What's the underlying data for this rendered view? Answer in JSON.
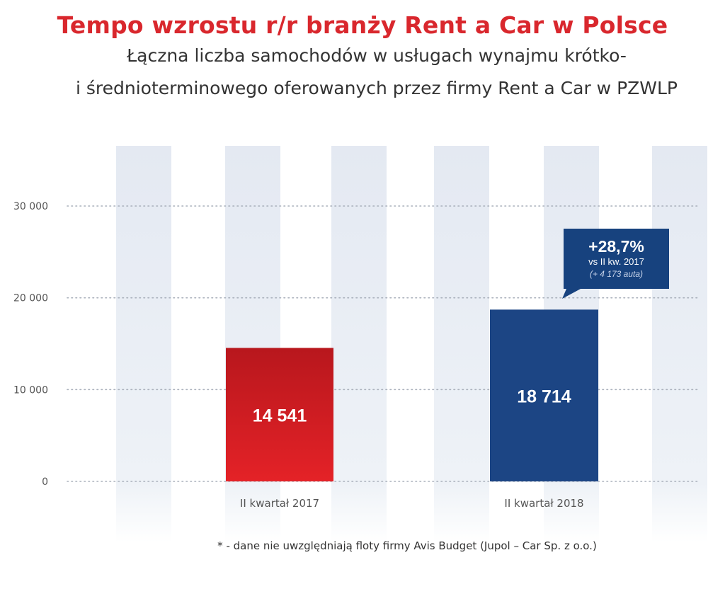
{
  "header": {
    "title": "Tempo wzrostu r/r branży Rent a Car w Polsce",
    "subtitle_line1": "Łączna liczba samochodów w usługach wynajmu krótko-",
    "subtitle_line2": "i średnioterminowego oferowanych przez firmy Rent a Car w PZWLP"
  },
  "chart_data": {
    "type": "bar",
    "categories": [
      "II kwartał 2017",
      "II kwartał 2018"
    ],
    "values": [
      14541,
      18714
    ],
    "value_labels": [
      "14 541",
      "18 714"
    ],
    "ylim": [
      0,
      35000
    ],
    "yticks": [
      0,
      10000,
      20000,
      30000
    ],
    "ytick_labels": [
      "0",
      "10 000",
      "20 000",
      "30 000"
    ],
    "grid": true,
    "colors": {
      "bar_2017_top": "#b8171d",
      "bar_2017_bottom": "#e42227",
      "bar_2018": "#1c4584",
      "callout": "#17427e",
      "stripe": "#e6ebf3"
    },
    "annotation": {
      "headline": "+28,7%",
      "line2": "vs II kw. 2017",
      "line3": "(+ 4 173 auta)"
    }
  },
  "footnote": "* - dane nie uwzględniają floty firmy Avis Budget (Jupol – Car Sp. z o.o.)"
}
